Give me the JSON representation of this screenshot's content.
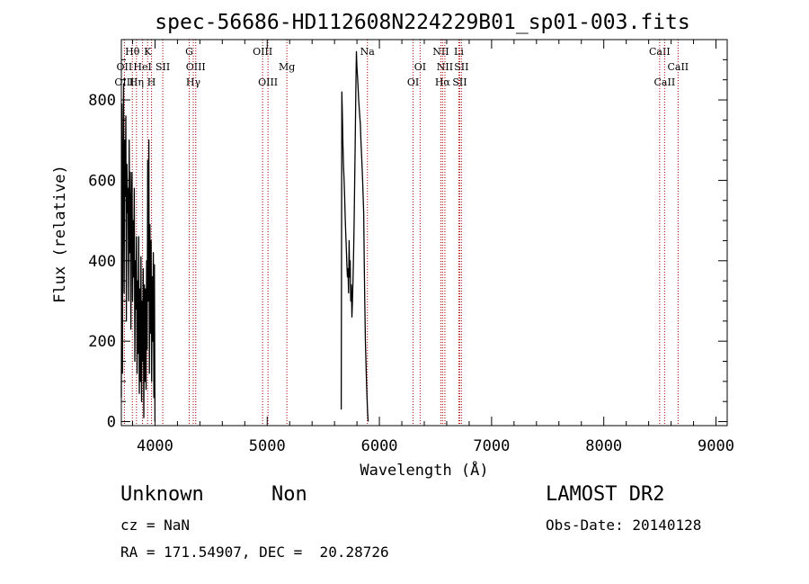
{
  "chart_data": {
    "type": "line",
    "title": "spec-56686-HD112608N224229B01_sp01-003.fits",
    "xlabel": "Wavelength (Å)",
    "ylabel": "Flux (relative)",
    "xlim": [
      3700,
      9100
    ],
    "ylim": [
      -10,
      950
    ],
    "x_ticks": [
      4000,
      5000,
      6000,
      7000,
      8000,
      9000
    ],
    "y_ticks": [
      0,
      200,
      400,
      600,
      800
    ],
    "grid": false,
    "series": [
      {
        "segments": [
          {
            "x": [
              3700,
              3705,
              3710,
              3715,
              3720,
              3725,
              3730,
              3735,
              3740,
              3745,
              3750,
              3755,
              3760,
              3765,
              3770,
              3775,
              3780,
              3785,
              3790,
              3795,
              3800,
              3805,
              3810,
              3815,
              3820,
              3825,
              3830,
              3835,
              3840,
              3845,
              3850,
              3855,
              3860,
              3865,
              3870,
              3875,
              3880,
              3885,
              3890,
              3895,
              3900,
              3905,
              3910,
              3915,
              3920,
              3925,
              3930,
              3935,
              3940,
              3945,
              3950,
              3955,
              3960,
              3965,
              3970,
              3975,
              3980,
              3985,
              3990,
              3995,
              4000
            ],
            "y": [
              60,
              790,
              120,
              650,
              840,
              320,
              700,
              560,
              760,
              250,
              640,
              520,
              580,
              300,
              700,
              420,
              620,
              230,
              540,
              620,
              300,
              500,
              360,
              580,
              150,
              400,
              280,
              460,
              120,
              350,
              170,
              460,
              70,
              330,
              100,
              410,
              50,
              300,
              150,
              380,
              10,
              340,
              100,
              330,
              80,
              400,
              180,
              650,
              300,
              700,
              120,
              490,
              220,
              450,
              100,
              360,
              200,
              420,
              60,
              390,
              0
            ]
          },
          {
            "x": [
              5660,
              5665,
              5670,
              5675,
              5680,
              5685,
              5690,
              5695,
              5700,
              5705,
              5710,
              5715,
              5720,
              5725,
              5730,
              5735,
              5740,
              5745,
              5750,
              5755,
              5760,
              5765,
              5770,
              5775,
              5780,
              5785,
              5790,
              5795,
              5800,
              5805,
              5810,
              5815,
              5820,
              5825,
              5830,
              5835,
              5840,
              5845,
              5850,
              5855,
              5860,
              5865,
              5870,
              5875,
              5880,
              5885,
              5890,
              5895,
              5900
            ],
            "y": [
              30,
              820,
              760,
              690,
              640,
              600,
              560,
              510,
              470,
              430,
              390,
              360,
              380,
              320,
              450,
              360,
              400,
              300,
              340,
              260,
              300,
              350,
              420,
              500,
              600,
              700,
              830,
              920,
              880,
              860,
              830,
              800,
              780,
              760,
              740,
              700,
              670,
              640,
              600,
              560,
              520,
              400,
              300,
              200,
              150,
              100,
              60,
              20,
              0
            ]
          }
        ]
      }
    ],
    "spectral_lines": [
      {
        "label": "Hθ",
        "x": 3798,
        "row": 1
      },
      {
        "label": "OII",
        "x": 3727,
        "row": 2
      },
      {
        "label": "OIII",
        "x": 3727,
        "row": 3
      },
      {
        "label": "K",
        "x": 3934,
        "row": 1
      },
      {
        "label": "HeI",
        "x": 3889,
        "row": 2
      },
      {
        "label": "Hη",
        "x": 3835,
        "row": 3
      },
      {
        "label": "SII",
        "x": 4069,
        "row": 2
      },
      {
        "label": "H",
        "x": 3969,
        "row": 3
      },
      {
        "label": "G",
        "x": 4305,
        "row": 1
      },
      {
        "label": "OIII",
        "x": 4363,
        "row": 2
      },
      {
        "label": "Hγ",
        "x": 4341,
        "row": 3
      },
      {
        "label": "OIII",
        "x": 4959,
        "row": 1
      },
      {
        "label": "Mg",
        "x": 5175,
        "row": 2
      },
      {
        "label": "OIII",
        "x": 5007,
        "row": 3
      },
      {
        "label": "Na",
        "x": 5893,
        "row": 1
      },
      {
        "label": "OI",
        "x": 6363,
        "row": 2
      },
      {
        "label": "OI",
        "x": 6300,
        "row": 3
      },
      {
        "label": "NII",
        "x": 6548,
        "row": 1
      },
      {
        "label": "NII",
        "x": 6584,
        "row": 2
      },
      {
        "label": "Hα",
        "x": 6563,
        "row": 3
      },
      {
        "label": "Li",
        "x": 6708,
        "row": 1
      },
      {
        "label": "SII",
        "x": 6731,
        "row": 2
      },
      {
        "label": "SII",
        "x": 6716,
        "row": 3
      },
      {
        "label": "CaII",
        "x": 8498,
        "row": 1
      },
      {
        "label": "CaII",
        "x": 8662,
        "row": 2
      },
      {
        "label": "CaII",
        "x": 8542,
        "row": 3
      }
    ],
    "colors": {
      "spectrum": "#000000",
      "line_markers": "#aa0000",
      "axes": "#000000"
    }
  },
  "info": {
    "object_class": "Unknown",
    "subclass": "Non",
    "survey": "LAMOST DR2",
    "redshift": "cz = NaN",
    "obs_date": "Obs-Date: 20140128",
    "coords": "RA = 171.54907, DEC =  20.28726"
  }
}
